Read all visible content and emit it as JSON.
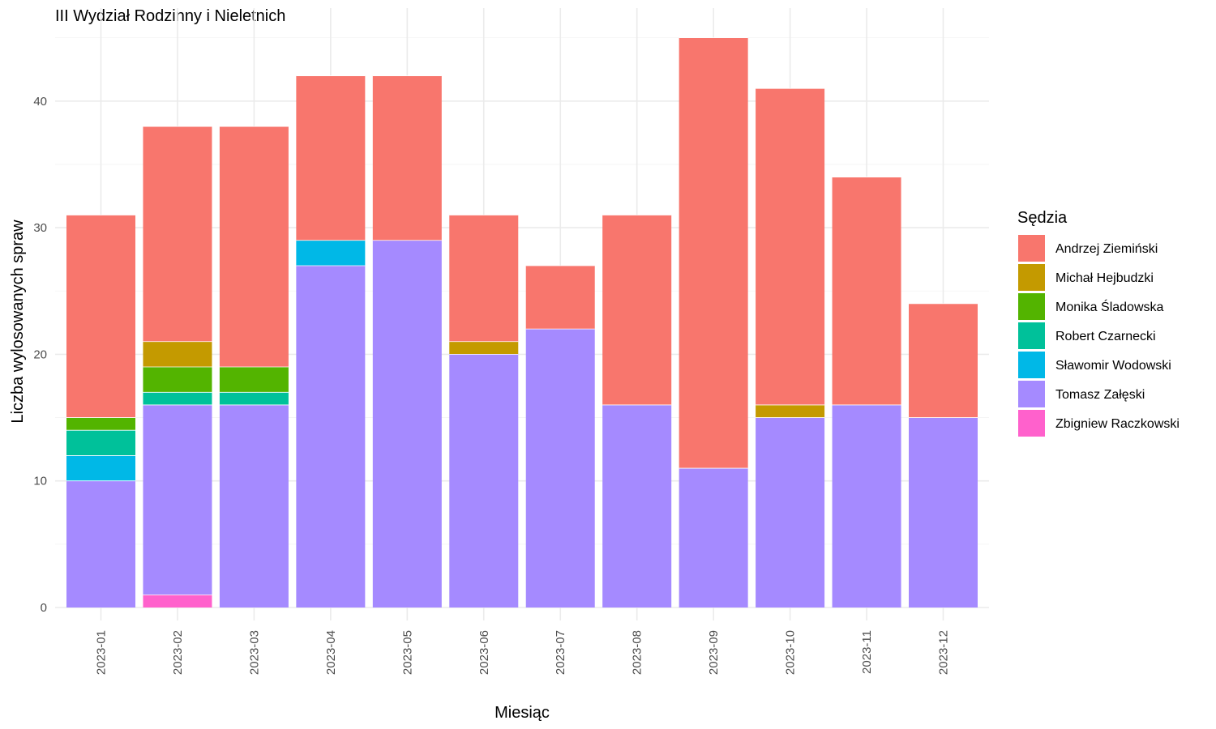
{
  "chart_data": {
    "type": "bar",
    "stacked": true,
    "title": "III Wydział Rodzinny i Nieletnich",
    "xlabel": "Miesiąc",
    "ylabel": "Liczba wylosowanych spraw",
    "ylim": [
      0,
      47
    ],
    "yticks": [
      0,
      10,
      20,
      30,
      40
    ],
    "grid": true,
    "legend_title": "Sędzia",
    "legend_position": "right",
    "categories": [
      "2023-01",
      "2023-02",
      "2023-03",
      "2023-04",
      "2023-05",
      "2023-06",
      "2023-07",
      "2023-08",
      "2023-09",
      "2023-10",
      "2023-11",
      "2023-12"
    ],
    "series": [
      {
        "name": "Zbigniew Raczkowski",
        "color": "#FF61CC",
        "values": [
          0,
          1,
          0,
          0,
          0,
          0,
          0,
          0,
          0,
          0,
          0,
          0
        ]
      },
      {
        "name": "Tomasz Załęski",
        "color": "#A58AFF",
        "values": [
          10,
          15,
          16,
          27,
          29,
          20,
          22,
          16,
          11,
          15,
          16,
          15
        ]
      },
      {
        "name": "Sławomir Wodowski",
        "color": "#00B8E7",
        "values": [
          2,
          0,
          0,
          2,
          0,
          0,
          0,
          0,
          0,
          0,
          0,
          0
        ]
      },
      {
        "name": "Robert Czarnecki",
        "color": "#00C19A",
        "values": [
          2,
          1,
          1,
          0,
          0,
          0,
          0,
          0,
          0,
          0,
          0,
          0
        ]
      },
      {
        "name": "Monika Śladowska",
        "color": "#53B400",
        "values": [
          1,
          2,
          2,
          0,
          0,
          0,
          0,
          0,
          0,
          0,
          0,
          0
        ]
      },
      {
        "name": "Michał Hejbudzki",
        "color": "#C49A00",
        "values": [
          0,
          2,
          0,
          0,
          0,
          1,
          0,
          0,
          0,
          1,
          0,
          0
        ]
      },
      {
        "name": "Andrzej Ziemiński",
        "color": "#F8766D",
        "values": [
          16,
          17,
          19,
          13,
          13,
          10,
          5,
          15,
          34,
          25,
          18,
          9
        ]
      }
    ],
    "legend_order": [
      "Andrzej Ziemiński",
      "Michał Hejbudzki",
      "Monika Śladowska",
      "Robert Czarnecki",
      "Sławomir Wodowski",
      "Tomasz Załęski",
      "Zbigniew Raczkowski"
    ]
  }
}
